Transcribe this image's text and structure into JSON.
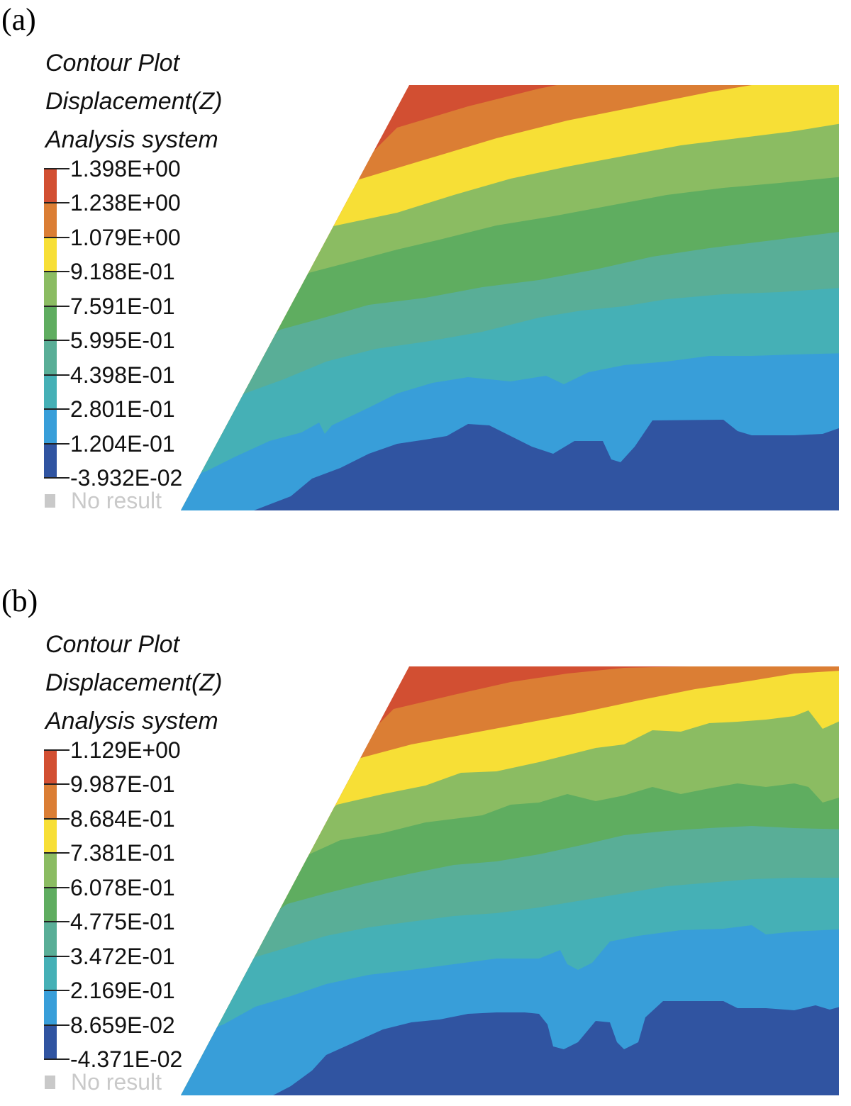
{
  "panels": [
    {
      "label": "(a)",
      "legend": {
        "title_lines": [
          "Contour Plot",
          "Displacement(Z)",
          "Analysis system"
        ],
        "levels": [
          "1.398E+00",
          "1.238E+00",
          "1.079E+00",
          "9.188E-01",
          "7.591E-01",
          "5.995E-01",
          "4.398E-01",
          "2.801E-01",
          "1.204E-01",
          "-3.932E-02"
        ],
        "no_result_label": "No result"
      }
    },
    {
      "label": "(b)",
      "legend": {
        "title_lines": [
          "Contour Plot",
          "Displacement(Z)",
          "Analysis system"
        ],
        "levels": [
          "1.129E+00",
          "9.987E-01",
          "8.684E-01",
          "7.381E-01",
          "6.078E-01",
          "4.775E-01",
          "3.472E-01",
          "2.169E-01",
          "8.659E-02",
          "-4.371E-02"
        ],
        "no_result_label": "No result"
      }
    }
  ],
  "colors": {
    "band_9": "#d24f32",
    "band_8": "#db7e34",
    "band_7": "#f7df36",
    "band_6": "#8bbc62",
    "band_5": "#5fad60",
    "band_4": "#59ae97",
    "band_3": "#45b0b6",
    "band_2": "#389ed9",
    "band_1": "#3054a1",
    "no_result": "#c9c9c9"
  }
}
